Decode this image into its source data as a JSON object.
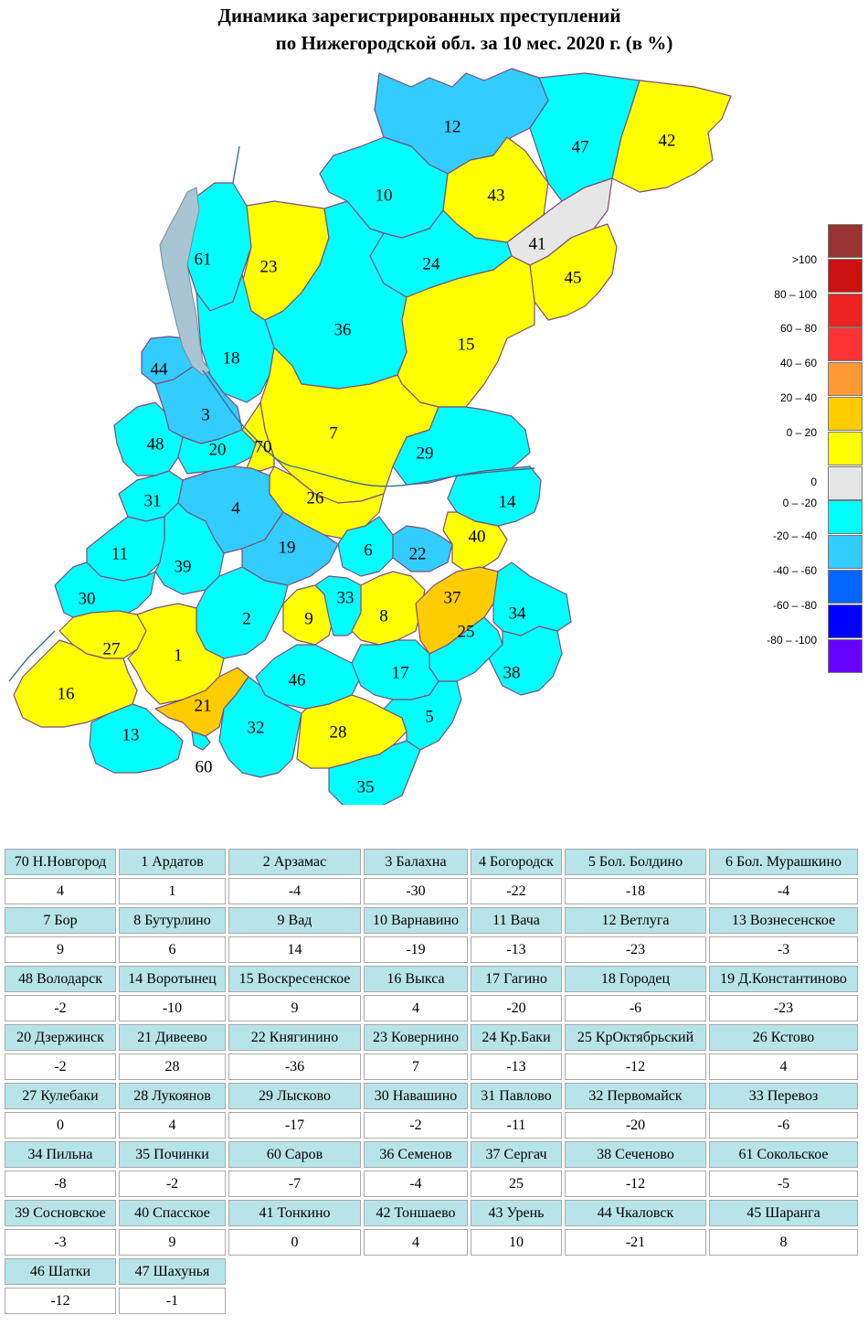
{
  "title": {
    "line1": "Динамика зарегистрированных преступлений",
    "line2": "по Нижегородской обл. за 10 мес. 2020 г. (в %)"
  },
  "colors": {
    "cyan": "#00ffff",
    "light_blue": "#33ccff",
    "yellow": "#ffff00",
    "orange": "#ffcc00",
    "gray": "#e6e6e6",
    "water": "#a9c4d3"
  },
  "map": {
    "regions": [
      {
        "id": "12",
        "fill": "light_blue"
      },
      {
        "id": "47",
        "fill": "cyan"
      },
      {
        "id": "42",
        "fill": "yellow"
      },
      {
        "id": "10",
        "fill": "cyan"
      },
      {
        "id": "43",
        "fill": "yellow"
      },
      {
        "id": "41",
        "fill": "gray"
      },
      {
        "id": "61",
        "fill": "cyan"
      },
      {
        "id": "23",
        "fill": "yellow"
      },
      {
        "id": "24",
        "fill": "cyan"
      },
      {
        "id": "45",
        "fill": "yellow"
      },
      {
        "id": "36",
        "fill": "cyan"
      },
      {
        "id": "15",
        "fill": "yellow"
      },
      {
        "id": "44",
        "fill": "light_blue"
      },
      {
        "id": "18",
        "fill": "cyan"
      },
      {
        "id": "3",
        "fill": "light_blue"
      },
      {
        "id": "7",
        "fill": "yellow"
      },
      {
        "id": "48",
        "fill": "cyan"
      },
      {
        "id": "20",
        "fill": "cyan"
      },
      {
        "id": "70",
        "fill": "yellow"
      },
      {
        "id": "29",
        "fill": "cyan"
      },
      {
        "id": "26",
        "fill": "yellow"
      },
      {
        "id": "31",
        "fill": "cyan"
      },
      {
        "id": "4",
        "fill": "light_blue"
      },
      {
        "id": "14",
        "fill": "cyan"
      },
      {
        "id": "11",
        "fill": "cyan"
      },
      {
        "id": "39",
        "fill": "cyan"
      },
      {
        "id": "19",
        "fill": "light_blue"
      },
      {
        "id": "6",
        "fill": "cyan"
      },
      {
        "id": "22",
        "fill": "light_blue"
      },
      {
        "id": "40",
        "fill": "yellow"
      },
      {
        "id": "30",
        "fill": "cyan"
      },
      {
        "id": "2",
        "fill": "cyan"
      },
      {
        "id": "9",
        "fill": "yellow"
      },
      {
        "id": "33",
        "fill": "cyan"
      },
      {
        "id": "8",
        "fill": "yellow"
      },
      {
        "id": "37",
        "fill": "orange"
      },
      {
        "id": "34",
        "fill": "cyan"
      },
      {
        "id": "27",
        "fill": "yellow"
      },
      {
        "id": "1",
        "fill": "yellow"
      },
      {
        "id": "25",
        "fill": "cyan"
      },
      {
        "id": "38",
        "fill": "cyan"
      },
      {
        "id": "16",
        "fill": "yellow"
      },
      {
        "id": "46",
        "fill": "cyan"
      },
      {
        "id": "17",
        "fill": "cyan"
      },
      {
        "id": "21",
        "fill": "orange"
      },
      {
        "id": "13",
        "fill": "cyan"
      },
      {
        "id": "32",
        "fill": "cyan"
      },
      {
        "id": "28",
        "fill": "yellow"
      },
      {
        "id": "5",
        "fill": "cyan"
      },
      {
        "id": "35",
        "fill": "cyan"
      },
      {
        "id": "60",
        "fill": "cyan"
      }
    ]
  },
  "legend": [
    {
      "label": "",
      "color": "#993333"
    },
    {
      "label": ">100",
      "color": "#cc1111"
    },
    {
      "label": "80 – 100",
      "color": "#ee2222"
    },
    {
      "label": "60 – 80",
      "color": "#ff3333"
    },
    {
      "label": "40 – 60",
      "color": "#ff9933"
    },
    {
      "label": "20 – 40",
      "color": "#ffcc00"
    },
    {
      "label": "0 – 20",
      "color": "#ffff00"
    },
    {
      "label": "0",
      "color": "#e6e6e6"
    },
    {
      "label": "0 – -20",
      "color": "#00ffff"
    },
    {
      "label": "-20 – -40",
      "color": "#33ccff"
    },
    {
      "label": "-40 – -60",
      "color": "#0066ff"
    },
    {
      "label": "-60 – -80",
      "color": "#0000ff"
    },
    {
      "label": "-80 – -100",
      "color": "#6600ff"
    }
  ],
  "table": [
    [
      [
        "70 Н.Новгород",
        "4"
      ],
      [
        "1 Ардатов",
        "1"
      ],
      [
        "2 Арзамас",
        "-4"
      ],
      [
        "3 Балахна",
        "-30"
      ],
      [
        "4 Богородск",
        "-22"
      ],
      [
        "5 Бол. Болдино",
        "-18"
      ],
      [
        "6 Бол. Мурашкино",
        "-4"
      ]
    ],
    [
      [
        "7 Бор",
        "9"
      ],
      [
        "8 Бутурлино",
        "6"
      ],
      [
        "9 Вад",
        "14"
      ],
      [
        "10 Варнавино",
        "-19"
      ],
      [
        "11 Вача",
        "-13"
      ],
      [
        "12 Ветлуга",
        "-23"
      ],
      [
        "13 Вознесенское",
        "-3"
      ]
    ],
    [
      [
        "48 Володарск",
        "-2"
      ],
      [
        "14 Воротынец",
        "-10"
      ],
      [
        "15 Воскресенское",
        "9"
      ],
      [
        "16 Выкса",
        "4"
      ],
      [
        "17 Гагино",
        "-20"
      ],
      [
        "18 Городец",
        "-6"
      ],
      [
        "19 Д.Константиново",
        "-23"
      ]
    ],
    [
      [
        "20 Дзержинск",
        "-2"
      ],
      [
        "21 Дивеево",
        "28"
      ],
      [
        "22 Княгинино",
        "-36"
      ],
      [
        "23 Ковернино",
        "7"
      ],
      [
        "24 Кр.Баки",
        "-13"
      ],
      [
        "25 КрОктябрьский",
        "-12"
      ],
      [
        "26 Кстово",
        "4"
      ]
    ],
    [
      [
        "27 Кулебаки",
        "0"
      ],
      [
        "28 Лукоянов",
        "4"
      ],
      [
        "29 Лысково",
        "-17"
      ],
      [
        "30 Навашино",
        "-2"
      ],
      [
        "31 Павлово",
        "-11"
      ],
      [
        "32 Первомайск",
        "-20"
      ],
      [
        "33 Перевоз",
        "-6"
      ]
    ],
    [
      [
        "34 Пильна",
        "-8"
      ],
      [
        "35 Починки",
        "-2"
      ],
      [
        "60 Саров",
        "-7"
      ],
      [
        "36 Семенов",
        "-4"
      ],
      [
        "37 Сергач",
        "25"
      ],
      [
        "38 Сеченово",
        "-12"
      ],
      [
        "61 Сокольское",
        "-5"
      ]
    ],
    [
      [
        "39 Сосновское",
        "-3"
      ],
      [
        "40 Спасское",
        "9"
      ],
      [
        "41 Тонкино",
        "0"
      ],
      [
        "42 Тоншаево",
        "4"
      ],
      [
        "43 Урень",
        "10"
      ],
      [
        "44 Чкаловск",
        "-21"
      ],
      [
        "45 Шаранга",
        "8"
      ]
    ],
    [
      [
        "46 Шатки",
        "-12"
      ],
      [
        "47 Шахунья",
        "-1"
      ]
    ]
  ]
}
